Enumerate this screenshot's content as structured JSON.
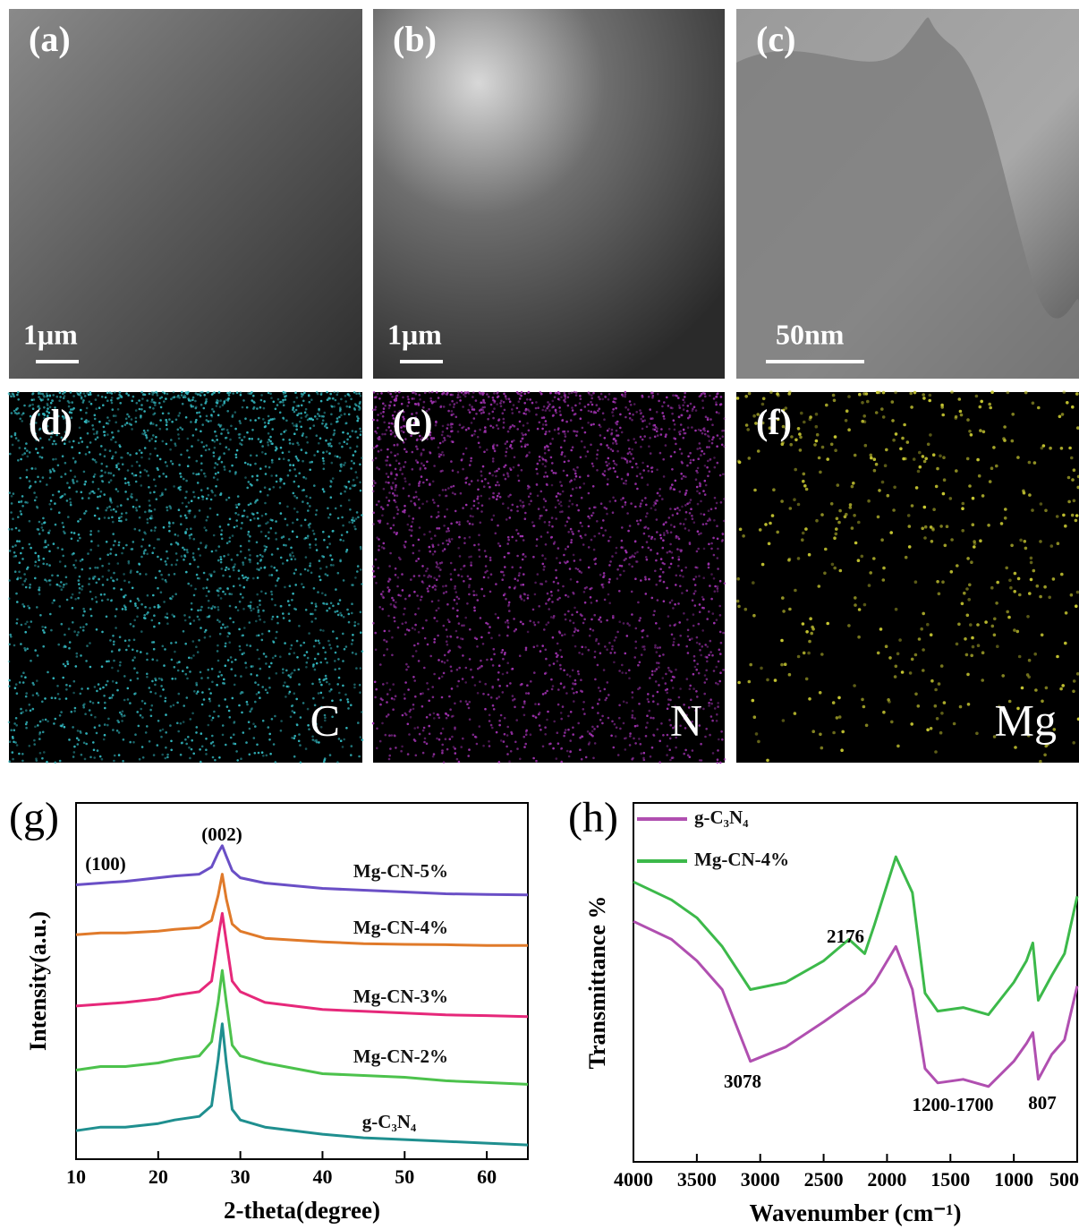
{
  "panels": [
    {
      "label": "(a)",
      "scale": "1μm"
    },
    {
      "label": "(b)",
      "scale": "1μm"
    },
    {
      "label": "(c)",
      "scale": "50nm"
    },
    {
      "label": "(d)",
      "element": "C"
    },
    {
      "label": "(e)",
      "element": "N"
    },
    {
      "label": "(f)",
      "element": "Mg"
    }
  ],
  "chart_data": [
    {
      "type": "line",
      "panel": "(g)",
      "x_label": "2-theta(degree)",
      "y_label": "Intensity(a.u.)",
      "xlim": [
        10,
        65
      ],
      "xticks": [
        10,
        20,
        30,
        40,
        50,
        60
      ],
      "ylim": [
        0,
        100
      ],
      "annotations": [
        "(100)",
        "(002)"
      ],
      "x": [
        10,
        13,
        16,
        20,
        22,
        25,
        26.5,
        27.3,
        27.8,
        28.3,
        29,
        30,
        33,
        40,
        45,
        50,
        55,
        60,
        65
      ],
      "series": [
        {
          "name": "Mg-CN-5%",
          "color": "#6a4fc6",
          "values": [
            77,
            77.5,
            78,
            79,
            79.5,
            80,
            82,
            86,
            88,
            85,
            81,
            79,
            77.5,
            76,
            75.5,
            75,
            74.5,
            74.3,
            74.2
          ]
        },
        {
          "name": "Mg-CN-4%",
          "color": "#e07a2a",
          "values": [
            63,
            63.5,
            63.5,
            64,
            64.5,
            65,
            67,
            74,
            80,
            73,
            66,
            64,
            62,
            61,
            60.5,
            60.3,
            60.2,
            60,
            60
          ]
        },
        {
          "name": "Mg-CN-3%",
          "color": "#e6287a",
          "values": [
            43,
            43.5,
            44,
            45,
            46,
            47,
            50,
            62,
            69,
            61,
            50,
            47,
            44,
            42,
            41.5,
            41,
            40.5,
            40.3,
            40
          ]
        },
        {
          "name": "Mg-CN-2%",
          "color": "#4cc24c",
          "values": [
            25,
            26,
            26,
            27,
            28,
            29,
            33,
            44,
            53,
            44,
            32,
            29,
            27,
            24,
            23.5,
            23,
            22,
            21.5,
            21
          ]
        },
        {
          "name": "g-C₃N₄",
          "color": "#1f8f8f",
          "values": [
            8,
            9,
            9,
            10,
            11,
            12,
            15,
            28,
            38,
            27,
            14,
            11,
            9,
            7,
            6,
            5.5,
            5,
            4.5,
            4
          ]
        }
      ]
    },
    {
      "type": "line",
      "panel": "(h)",
      "x_label": "Wavenumber (cm⁻¹)",
      "y_label": "Transmittance %",
      "xlim": [
        4000,
        500
      ],
      "xticks": [
        4000,
        3500,
        3000,
        2500,
        2000,
        1500,
        1000,
        500
      ],
      "ylim": [
        0,
        100
      ],
      "annotations": [
        "2176",
        "3078",
        "1200-1700",
        "807"
      ],
      "x": [
        4000,
        3700,
        3500,
        3300,
        3078,
        2800,
        2500,
        2300,
        2176,
        2100,
        1930,
        1800,
        1700,
        1600,
        1400,
        1200,
        1000,
        900,
        850,
        807,
        700,
        600,
        500
      ],
      "series": [
        {
          "name": "g-C₃N₄",
          "color": "#b04fb0",
          "values": [
            67,
            62,
            56,
            48,
            28,
            32,
            39,
            44,
            47,
            50,
            60,
            48,
            26,
            22,
            23,
            21,
            28,
            33,
            36,
            23,
            30,
            34,
            49
          ]
        },
        {
          "name": "Mg-CN-4%",
          "color": "#3cb94a",
          "values": [
            78,
            73,
            68,
            60,
            48,
            50,
            56,
            62,
            58,
            66,
            85,
            75,
            47,
            42,
            43,
            41,
            50,
            56,
            61,
            45,
            52,
            58,
            74
          ]
        }
      ]
    }
  ]
}
